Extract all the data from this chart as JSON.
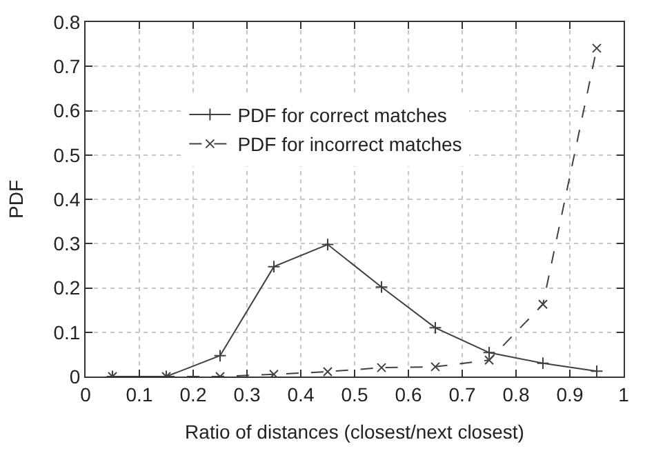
{
  "chart_data": {
    "type": "line",
    "xlabel": "Ratio of distances (closest/next closest)",
    "ylabel": "PDF",
    "x": [
      0.05,
      0.15,
      0.25,
      0.35,
      0.45,
      0.55,
      0.65,
      0.75,
      0.85,
      0.95
    ],
    "series": [
      {
        "name": "PDF for correct matches",
        "color": "#404040",
        "values": [
          0,
          0,
          0.047,
          0.248,
          0.298,
          0.202,
          0.11,
          0.054,
          0.03,
          0.012
        ],
        "marker": "cross",
        "line_style": "solid"
      },
      {
        "name": "PDF for incorrect matches",
        "color": "#404040",
        "values": [
          0,
          0,
          0,
          0.005,
          0.011,
          0.02,
          0.022,
          0.037,
          0.163,
          0.741
        ],
        "marker": "x",
        "line_style": "dashed"
      }
    ],
    "xlim": [
      0,
      1
    ],
    "xticks": [
      0,
      0.1,
      0.2,
      0.3,
      0.4,
      0.5,
      0.6,
      0.7,
      0.8,
      0.9,
      1
    ],
    "ylim": [
      0,
      0.8
    ],
    "yticks": [
      0,
      0.1,
      0.2,
      0.3,
      0.4,
      0.5,
      0.6,
      0.7,
      0.8
    ],
    "grid": true,
    "legend": "top left"
  }
}
